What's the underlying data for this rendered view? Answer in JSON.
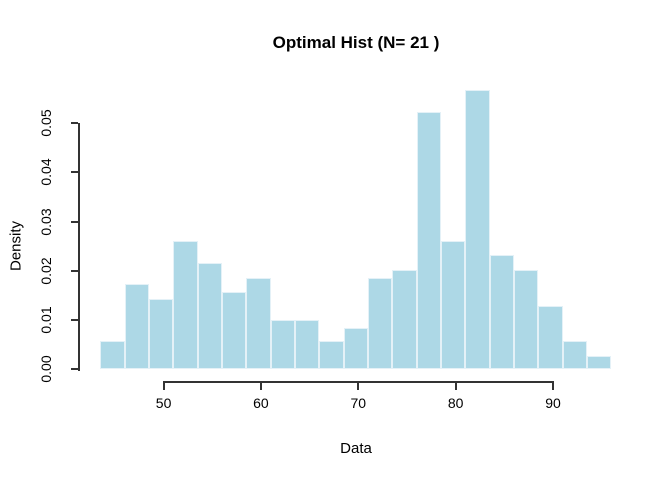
{
  "figure": {
    "title": "Optimal Hist (N= 21 )",
    "xlabel": "Data",
    "ylabel": "Density"
  },
  "chart_data": {
    "type": "bar",
    "subtype": "histogram",
    "title": "Optimal Hist (N= 21 )",
    "xlabel": "Data",
    "ylabel": "Density",
    "n_bins": 21,
    "bin_start": 43.5,
    "bin_width": 2.5,
    "xlim": [
      43.5,
      96
    ],
    "ylim": [
      0,
      0.05
    ],
    "x_ticks": [
      50,
      60,
      70,
      80,
      90
    ],
    "y_ticks": [
      0,
      0.01,
      0.02,
      0.03,
      0.04,
      0.05
    ],
    "y_tick_labels": [
      "0.00",
      "0.01",
      "0.02",
      "0.03",
      "0.04",
      "0.05"
    ],
    "bin_edges": [
      43.5,
      46,
      48.5,
      51,
      53.5,
      56,
      58.5,
      61,
      63.5,
      66,
      68.5,
      71,
      73.5,
      76,
      78.5,
      81,
      83.5,
      86,
      88.5,
      91,
      93.5,
      96
    ],
    "values": [
      0.0056,
      0.0172,
      0.0143,
      0.026,
      0.0216,
      0.0157,
      0.0186,
      0.0099,
      0.0099,
      0.0056,
      0.0084,
      0.0186,
      0.0201,
      0.0524,
      0.026,
      0.0568,
      0.0231,
      0.0201,
      0.0129,
      0.0056,
      0.0026
    ],
    "bar_color": "#ADD8E6",
    "bar_border_color": "#E4F1F7",
    "axis_color": "#333333",
    "grid": false,
    "legend": null
  }
}
